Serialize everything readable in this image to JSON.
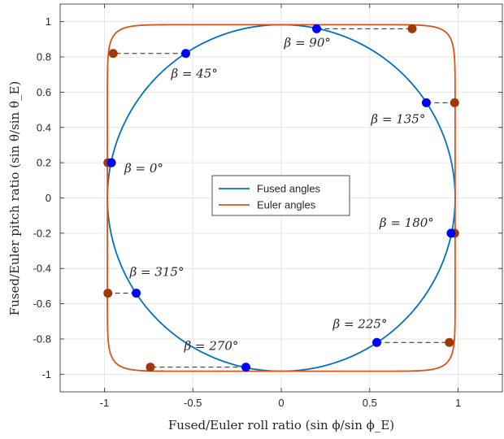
{
  "chart_data": {
    "type": "line",
    "title": "",
    "xlabel": "Fused/Euler roll ratio (sin ϕ/sin ϕ_E)",
    "ylabel": "Fused/Euler pitch ratio (sin θ/sin θ_E)",
    "xlim": [
      -1.25,
      1.25
    ],
    "ylim": [
      -1.1,
      1.1
    ],
    "xticks": [
      -1,
      -0.5,
      0,
      0.5,
      1
    ],
    "xtick_labels": [
      "-1",
      "-0.5",
      "0",
      "0.5",
      "1"
    ],
    "yticks": [
      -1,
      -0.8,
      -0.6,
      -0.4,
      -0.2,
      0,
      0.2,
      0.4,
      0.6,
      0.8,
      1
    ],
    "ytick_labels": [
      "-1",
      "-0.8",
      "-0.6",
      "-0.4",
      "-0.2",
      "0",
      "0.2",
      "0.4",
      "0.6",
      "0.8",
      "1"
    ],
    "grid": true,
    "legend_position": "center",
    "series": [
      {
        "name": "Fused angles",
        "color": "#0072bd",
        "shape": "circle",
        "radius": 0.983
      },
      {
        "name": "Euler angles",
        "color": "#d95319",
        "shape": "superellipse",
        "radius": 0.983,
        "exponent": 14
      }
    ],
    "marker_pairs": [
      {
        "label": "β = 0°",
        "fused": [
          -0.96,
          0.2
        ],
        "euler": [
          -0.98,
          0.2
        ]
      },
      {
        "label": "β = 45°",
        "fused": [
          -0.54,
          0.82
        ],
        "euler": [
          -0.95,
          0.82
        ]
      },
      {
        "label": "β = 90°",
        "fused": [
          0.2,
          0.96
        ],
        "euler": [
          0.74,
          0.96
        ]
      },
      {
        "label": "β = 135°",
        "fused": [
          0.82,
          0.54
        ],
        "euler": [
          0.98,
          0.54
        ]
      },
      {
        "label": "β = 180°",
        "fused": [
          0.96,
          -0.2
        ],
        "euler": [
          0.98,
          -0.2
        ]
      },
      {
        "label": "β = 225°",
        "fused": [
          0.54,
          -0.82
        ],
        "euler": [
          0.95,
          -0.82
        ]
      },
      {
        "label": "β = 270°",
        "fused": [
          -0.2,
          -0.96
        ],
        "euler": [
          -0.74,
          -0.96
        ]
      },
      {
        "label": "β = 315°",
        "fused": [
          -0.82,
          -0.54
        ],
        "euler": [
          -0.98,
          -0.54
        ]
      }
    ],
    "marker_colors": {
      "fused": "#0000ff",
      "euler": "#a0380a"
    }
  }
}
